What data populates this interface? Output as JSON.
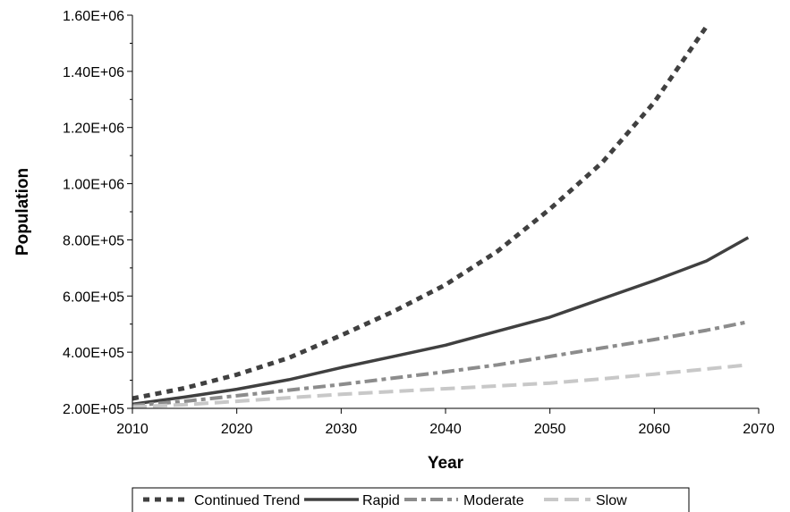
{
  "chart_data": {
    "type": "line",
    "title": "",
    "xlabel": "Year",
    "ylabel": "Population",
    "xlim": [
      2010,
      2070
    ],
    "ylim": [
      200000,
      1600000
    ],
    "x_ticks": [
      2010,
      2020,
      2030,
      2040,
      2050,
      2060,
      2070
    ],
    "x_tick_labels": [
      "2010",
      "2020",
      "2030",
      "2040",
      "2050",
      "2060",
      "2070"
    ],
    "y_ticks": [
      200000,
      400000,
      600000,
      800000,
      1000000,
      1200000,
      1400000,
      1600000
    ],
    "y_tick_labels": [
      "2.00E+05",
      "4.00E+05",
      "6.00E+05",
      "8.00E+05",
      "1.00E+06",
      "1.20E+06",
      "1.40E+06",
      "1.60E+06"
    ],
    "grid": false,
    "legend_position": "bottom",
    "series": [
      {
        "name": "Continued Trend",
        "color": "#404040",
        "style": "dotted",
        "x": [
          2010,
          2015,
          2020,
          2025,
          2030,
          2035,
          2040,
          2045,
          2050,
          2055,
          2060,
          2065
        ],
        "y": [
          235000,
          272000,
          320000,
          380000,
          460000,
          545000,
          640000,
          760000,
          910000,
          1075000,
          1290000,
          1560000
        ]
      },
      {
        "name": "Rapid",
        "color": "#404040",
        "style": "solid",
        "x": [
          2010,
          2015,
          2020,
          2025,
          2030,
          2035,
          2040,
          2045,
          2050,
          2055,
          2060,
          2065,
          2069
        ],
        "y": [
          215000,
          240000,
          268000,
          302000,
          345000,
          385000,
          425000,
          475000,
          525000,
          590000,
          655000,
          725000,
          808000
        ]
      },
      {
        "name": "Moderate",
        "color": "#8c8c8c",
        "style": "dash-dot",
        "x": [
          2010,
          2015,
          2020,
          2025,
          2030,
          2035,
          2040,
          2045,
          2050,
          2055,
          2060,
          2065,
          2069
        ],
        "y": [
          210000,
          225000,
          245000,
          265000,
          285000,
          308000,
          330000,
          355000,
          385000,
          415000,
          445000,
          478000,
          508000
        ]
      },
      {
        "name": "Slow",
        "color": "#c8c8c8",
        "style": "long-dash",
        "x": [
          2010,
          2015,
          2020,
          2025,
          2030,
          2035,
          2040,
          2045,
          2050,
          2055,
          2060,
          2065,
          2069
        ],
        "y": [
          205000,
          213000,
          225000,
          238000,
          250000,
          260000,
          270000,
          280000,
          290000,
          305000,
          322000,
          340000,
          355000
        ]
      }
    ]
  }
}
